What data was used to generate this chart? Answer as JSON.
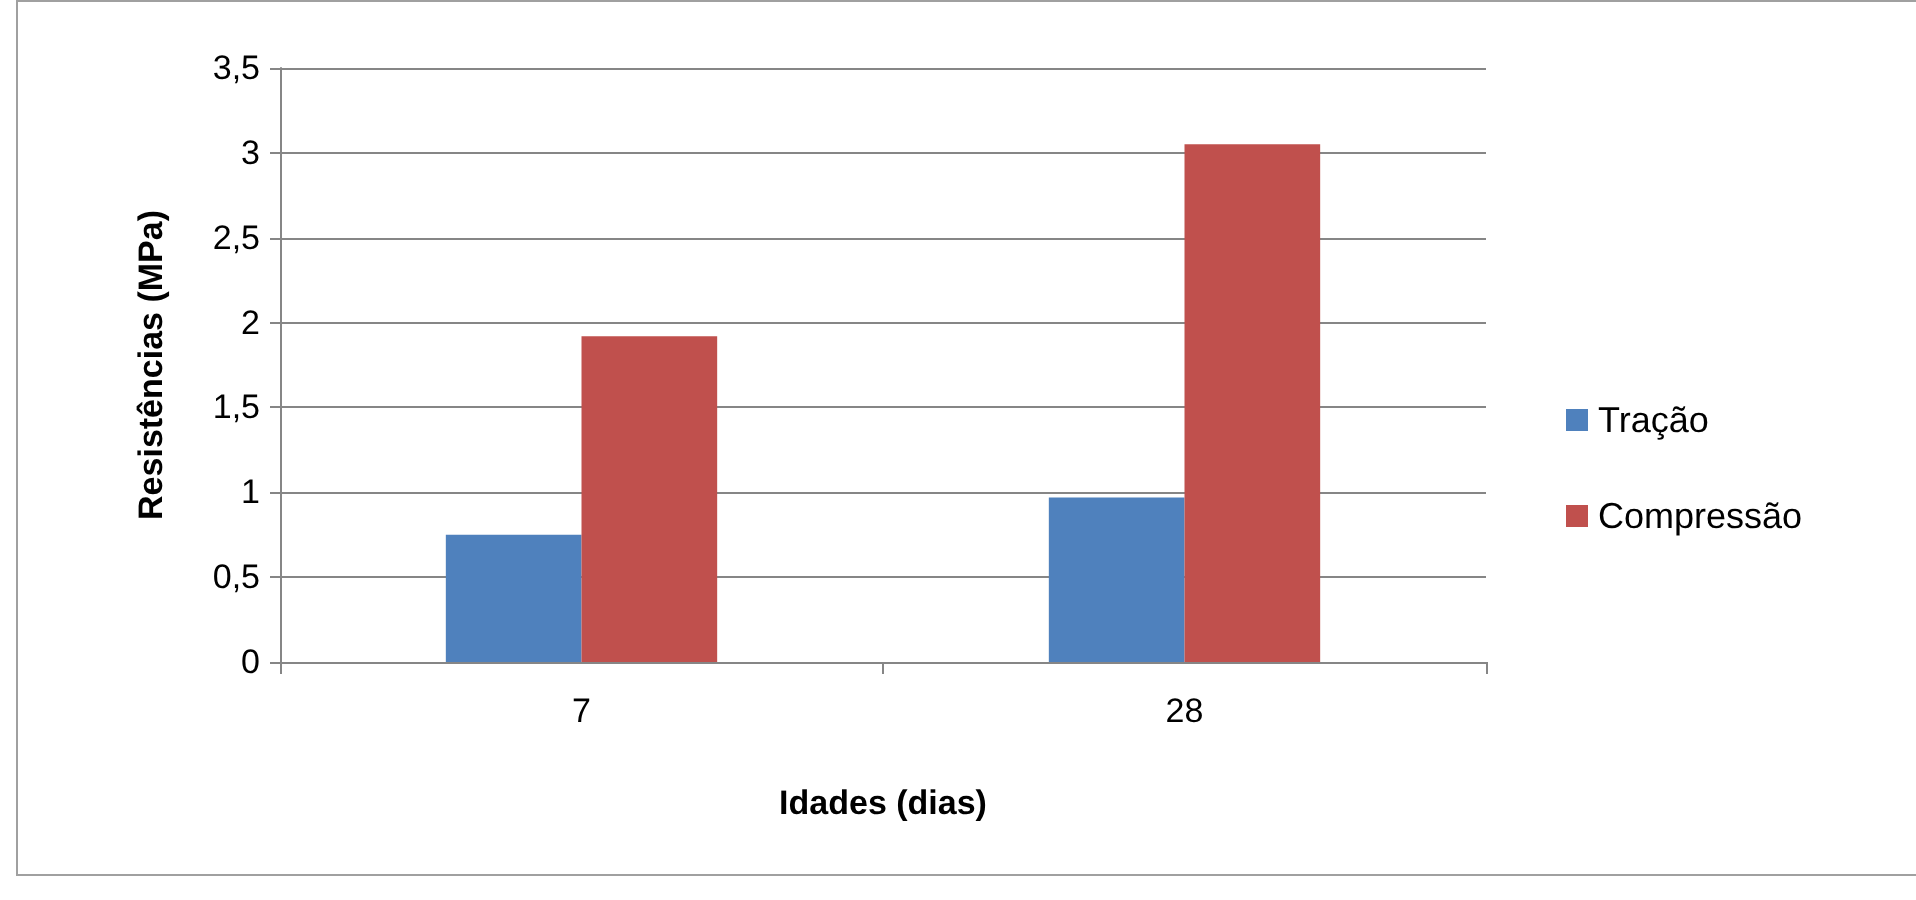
{
  "chart_data": {
    "type": "bar",
    "xlabel": "Idades (dias)",
    "ylabel": "Resistências (MPa)",
    "categories": [
      "7",
      "28"
    ],
    "series": [
      {
        "name": "Tração",
        "color": "#4f81bd",
        "values": [
          0.75,
          0.97
        ]
      },
      {
        "name": "Compressão",
        "color": "#c0504d",
        "values": [
          1.92,
          3.05
        ]
      }
    ],
    "ylim": [
      0,
      3.5
    ],
    "yticks": [
      0,
      {
        "value": 0.5,
        "label": "0,5"
      },
      1,
      {
        "value": 1.5,
        "label": "1,5"
      },
      2,
      {
        "value": 2.5,
        "label": "2,5"
      },
      3,
      {
        "value": 3.5,
        "label": "3,5"
      }
    ],
    "grid": "y",
    "legend": "right"
  }
}
